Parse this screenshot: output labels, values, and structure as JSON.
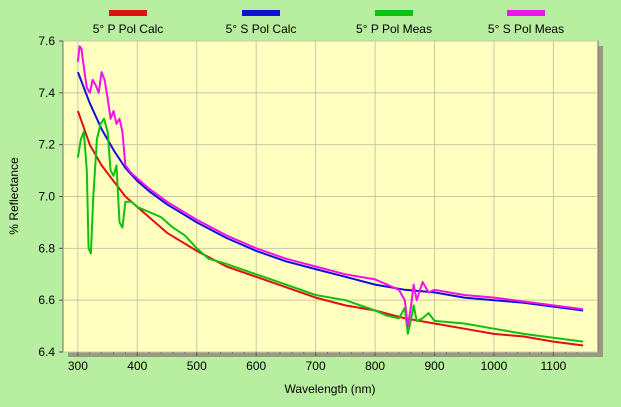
{
  "chart_data": {
    "type": "line",
    "title": "",
    "xlabel": "Wavelength (nm)",
    "ylabel": "% Reflectance",
    "xlim": [
      275,
      1175
    ],
    "ylim": [
      6.4,
      7.6
    ],
    "xticks": [
      300,
      400,
      500,
      600,
      700,
      800,
      900,
      1000,
      1100
    ],
    "yticks": [
      6.4,
      6.6,
      6.8,
      7.0,
      7.2,
      7.4,
      7.6
    ],
    "grid": true,
    "legend_position": "top",
    "series": [
      {
        "name": "5° P Pol Calc",
        "color": "#e01010",
        "points": [
          [
            300,
            7.33
          ],
          [
            320,
            7.2
          ],
          [
            340,
            7.12
          ],
          [
            360,
            7.06
          ],
          [
            380,
            7.0
          ],
          [
            400,
            6.96
          ],
          [
            420,
            6.92
          ],
          [
            450,
            6.86
          ],
          [
            500,
            6.79
          ],
          [
            550,
            6.73
          ],
          [
            600,
            6.69
          ],
          [
            650,
            6.65
          ],
          [
            700,
            6.61
          ],
          [
            750,
            6.58
          ],
          [
            800,
            6.56
          ],
          [
            850,
            6.53
          ],
          [
            900,
            6.51
          ],
          [
            950,
            6.49
          ],
          [
            1000,
            6.47
          ],
          [
            1050,
            6.46
          ],
          [
            1100,
            6.44
          ],
          [
            1150,
            6.425
          ]
        ]
      },
      {
        "name": "5° S Pol Calc",
        "color": "#1010d8",
        "points": [
          [
            300,
            7.48
          ],
          [
            320,
            7.36
          ],
          [
            340,
            7.26
          ],
          [
            360,
            7.18
          ],
          [
            380,
            7.11
          ],
          [
            400,
            7.06
          ],
          [
            420,
            7.02
          ],
          [
            450,
            6.97
          ],
          [
            500,
            6.9
          ],
          [
            550,
            6.84
          ],
          [
            600,
            6.79
          ],
          [
            650,
            6.75
          ],
          [
            700,
            6.72
          ],
          [
            750,
            6.69
          ],
          [
            800,
            6.66
          ],
          [
            850,
            6.64
          ],
          [
            900,
            6.63
          ],
          [
            950,
            6.61
          ],
          [
            1000,
            6.6
          ],
          [
            1050,
            6.59
          ],
          [
            1100,
            6.575
          ],
          [
            1150,
            6.56
          ]
        ]
      },
      {
        "name": "5° P Pol Meas",
        "color": "#10c010",
        "points": [
          [
            300,
            7.15
          ],
          [
            305,
            7.22
          ],
          [
            310,
            7.25
          ],
          [
            315,
            7.1
          ],
          [
            318,
            6.8
          ],
          [
            322,
            6.78
          ],
          [
            326,
            7.0
          ],
          [
            332,
            7.22
          ],
          [
            338,
            7.28
          ],
          [
            344,
            7.3
          ],
          [
            350,
            7.25
          ],
          [
            355,
            7.1
          ],
          [
            360,
            7.08
          ],
          [
            365,
            7.12
          ],
          [
            370,
            6.9
          ],
          [
            375,
            6.88
          ],
          [
            380,
            6.98
          ],
          [
            390,
            6.98
          ],
          [
            400,
            6.96
          ],
          [
            420,
            6.94
          ],
          [
            440,
            6.92
          ],
          [
            460,
            6.88
          ],
          [
            480,
            6.85
          ],
          [
            500,
            6.8
          ],
          [
            520,
            6.76
          ],
          [
            550,
            6.74
          ],
          [
            600,
            6.7
          ],
          [
            650,
            6.66
          ],
          [
            700,
            6.62
          ],
          [
            750,
            6.6
          ],
          [
            800,
            6.56
          ],
          [
            820,
            6.54
          ],
          [
            840,
            6.53
          ],
          [
            850,
            6.57
          ],
          [
            855,
            6.47
          ],
          [
            860,
            6.52
          ],
          [
            865,
            6.58
          ],
          [
            870,
            6.52
          ],
          [
            880,
            6.53
          ],
          [
            890,
            6.55
          ],
          [
            900,
            6.52
          ],
          [
            950,
            6.51
          ],
          [
            1000,
            6.49
          ],
          [
            1050,
            6.47
          ],
          [
            1100,
            6.455
          ],
          [
            1150,
            6.44
          ]
        ]
      },
      {
        "name": "5° S Pol Meas",
        "color": "#f010f0",
        "points": [
          [
            300,
            7.52
          ],
          [
            303,
            7.58
          ],
          [
            306,
            7.57
          ],
          [
            310,
            7.5
          ],
          [
            315,
            7.42
          ],
          [
            320,
            7.4
          ],
          [
            325,
            7.45
          ],
          [
            330,
            7.43
          ],
          [
            335,
            7.4
          ],
          [
            340,
            7.48
          ],
          [
            345,
            7.45
          ],
          [
            350,
            7.38
          ],
          [
            355,
            7.3
          ],
          [
            360,
            7.33
          ],
          [
            365,
            7.28
          ],
          [
            370,
            7.3
          ],
          [
            375,
            7.25
          ],
          [
            380,
            7.12
          ],
          [
            390,
            7.09
          ],
          [
            400,
            7.07
          ],
          [
            420,
            7.03
          ],
          [
            450,
            6.98
          ],
          [
            500,
            6.91
          ],
          [
            550,
            6.85
          ],
          [
            600,
            6.8
          ],
          [
            650,
            6.76
          ],
          [
            700,
            6.73
          ],
          [
            750,
            6.7
          ],
          [
            800,
            6.68
          ],
          [
            820,
            6.66
          ],
          [
            840,
            6.64
          ],
          [
            850,
            6.6
          ],
          [
            855,
            6.5
          ],
          [
            860,
            6.57
          ],
          [
            865,
            6.66
          ],
          [
            870,
            6.6
          ],
          [
            880,
            6.67
          ],
          [
            890,
            6.63
          ],
          [
            900,
            6.64
          ],
          [
            950,
            6.62
          ],
          [
            1000,
            6.61
          ],
          [
            1050,
            6.595
          ],
          [
            1100,
            6.58
          ],
          [
            1150,
            6.565
          ]
        ]
      }
    ]
  }
}
